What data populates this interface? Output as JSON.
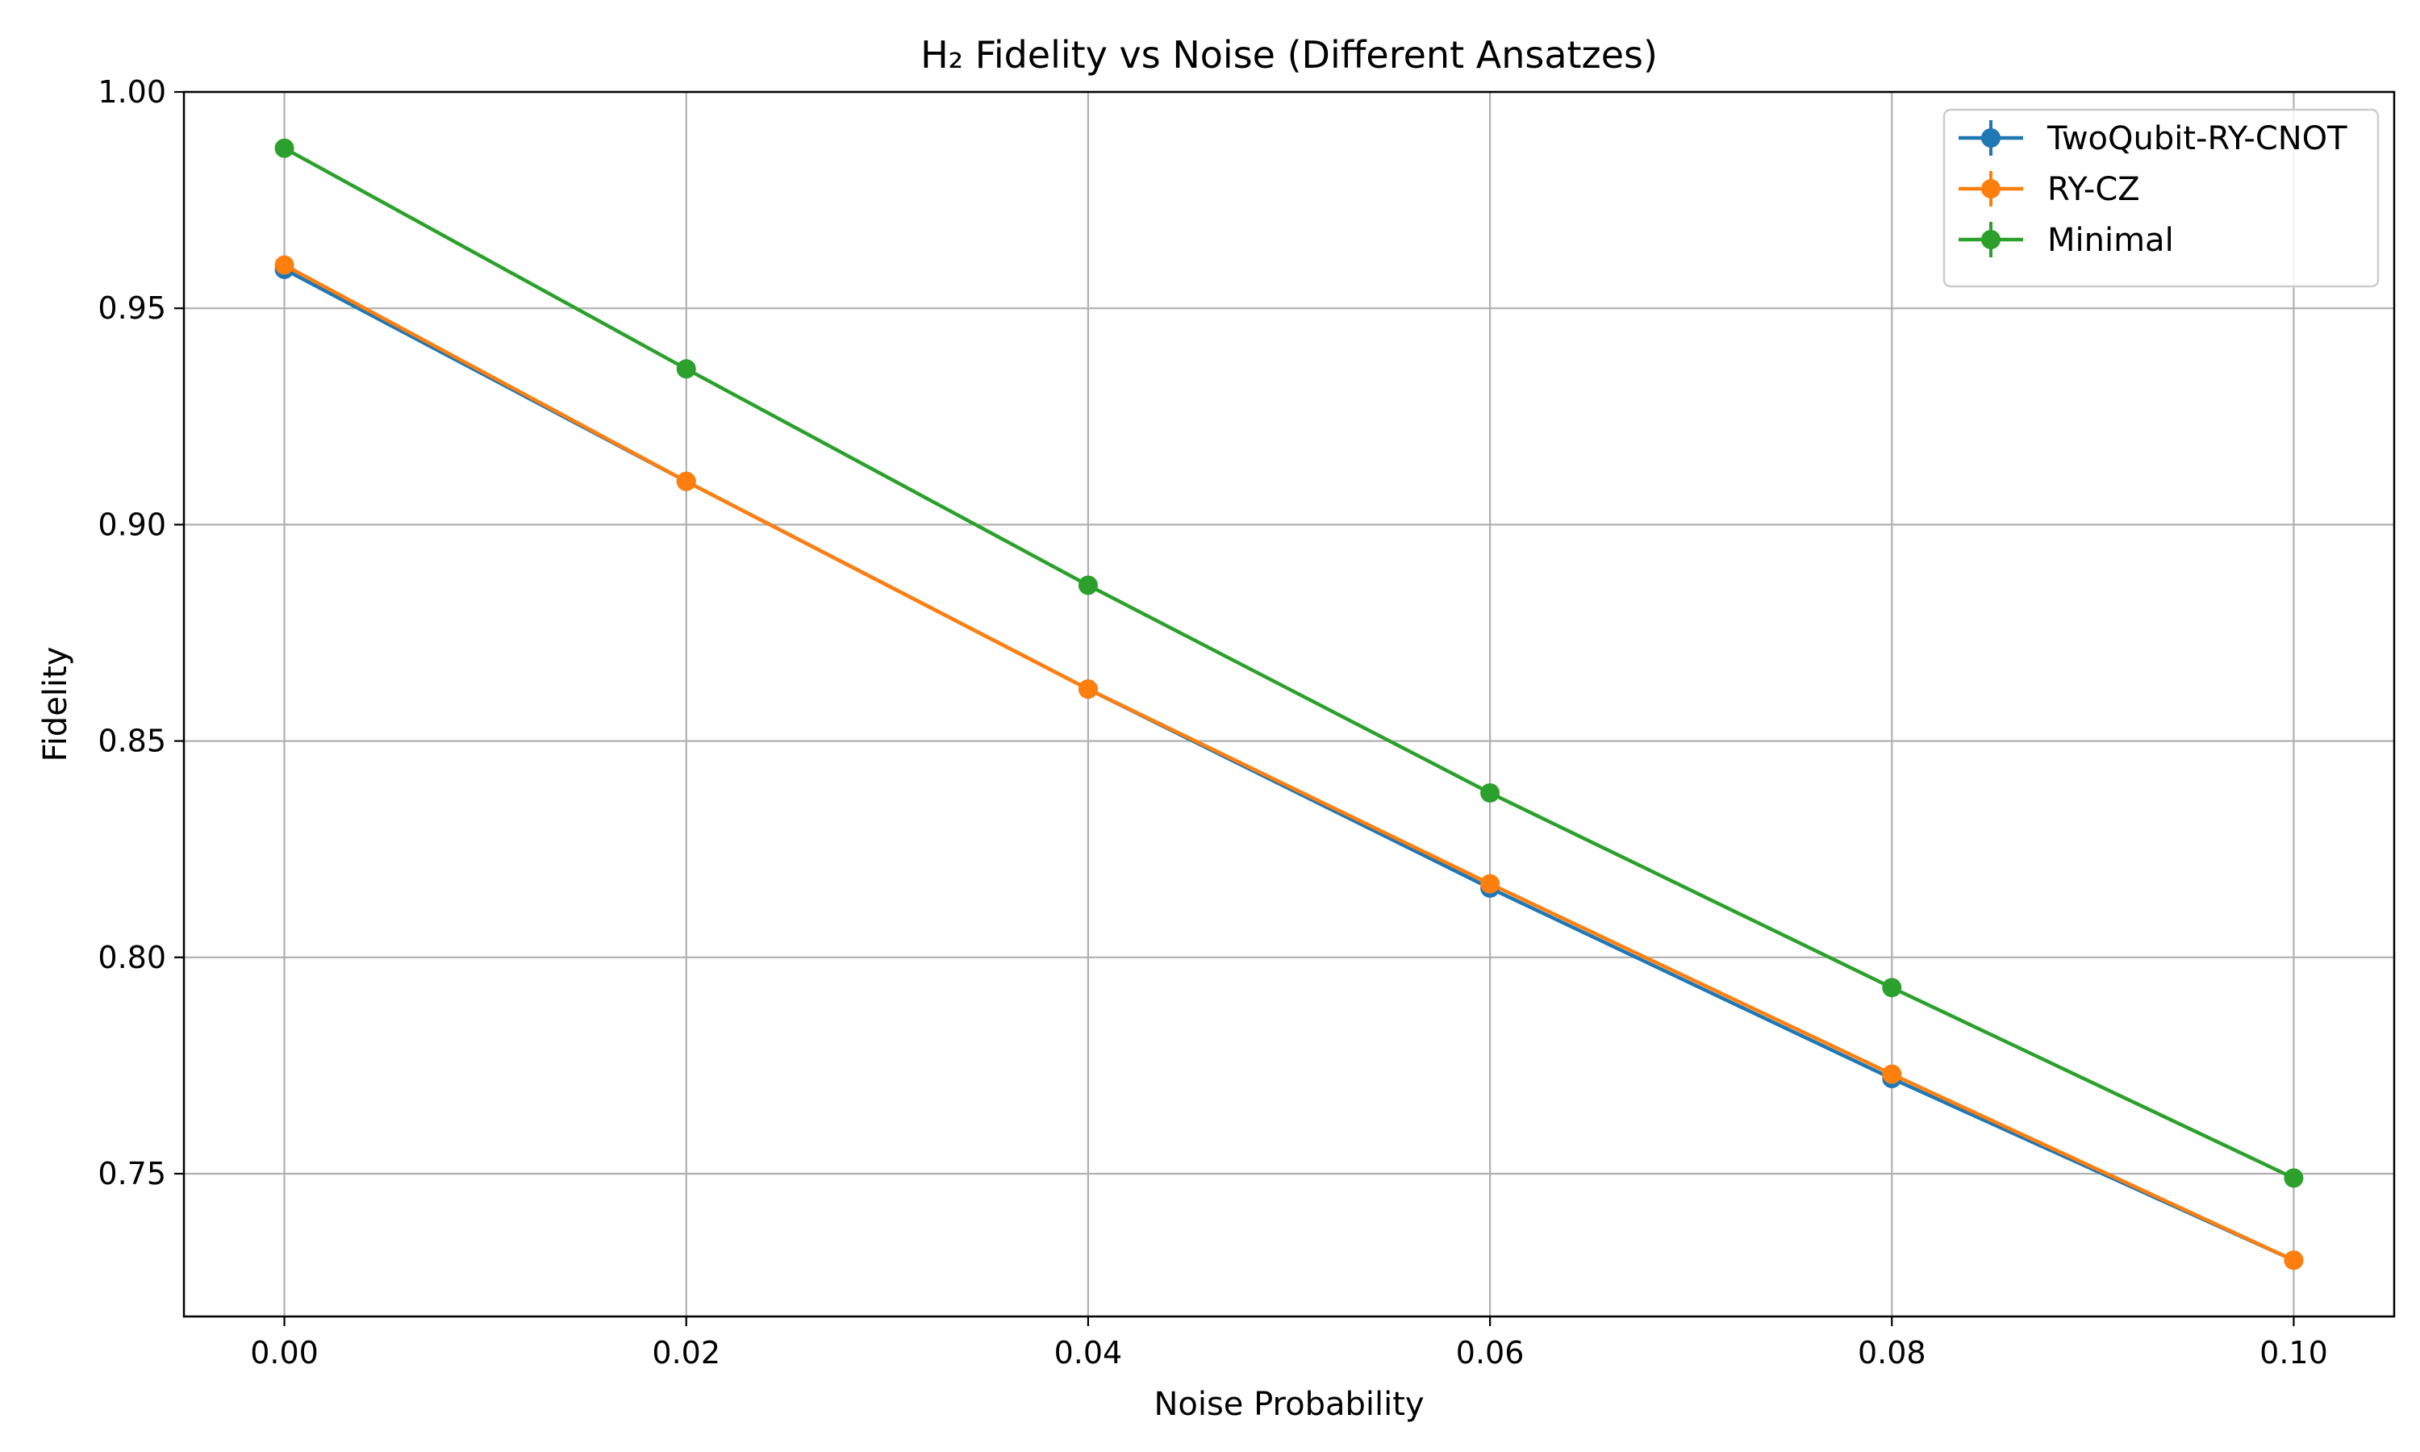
{
  "chart_data": {
    "type": "line",
    "title": "H₂ Fidelity vs Noise (Different Ansatzes)",
    "xlabel": "Noise Probability",
    "ylabel": "Fidelity",
    "x": [
      0.0,
      0.02,
      0.04,
      0.06,
      0.08,
      0.1
    ],
    "x_tick_values": [
      0.0,
      0.02,
      0.04,
      0.06,
      0.08,
      0.1
    ],
    "x_tick_labels": [
      "0.00",
      "0.02",
      "0.04",
      "0.06",
      "0.08",
      "0.10"
    ],
    "y_tick_values": [
      0.75,
      0.8,
      0.85,
      0.9,
      0.95,
      1.0
    ],
    "y_tick_labels": [
      "0.75",
      "0.80",
      "0.85",
      "0.90",
      "0.95",
      "1.00"
    ],
    "xlim": [
      -0.005,
      0.105
    ],
    "ylim": [
      0.717,
      1.0
    ],
    "grid": true,
    "legend_position": "top-right",
    "series": [
      {
        "name": "TwoQubit-RY-CNOT",
        "color": "#1f77b4",
        "values": [
          0.959,
          0.91,
          0.862,
          0.816,
          0.772,
          0.73
        ]
      },
      {
        "name": "RY-CZ",
        "color": "#ff7f0e",
        "values": [
          0.96,
          0.91,
          0.862,
          0.817,
          0.773,
          0.73
        ]
      },
      {
        "name": "Minimal",
        "color": "#2ca02c",
        "values": [
          0.987,
          0.936,
          0.886,
          0.838,
          0.793,
          0.749
        ]
      }
    ]
  }
}
